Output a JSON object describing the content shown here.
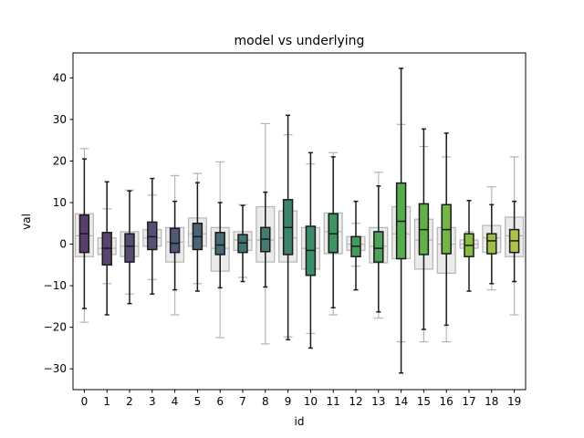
{
  "chart_data": {
    "type": "box",
    "title": "model vs underlying",
    "xlabel": "id",
    "ylabel": "val",
    "ylim": [
      -35,
      46
    ],
    "yticks": [
      -30,
      -20,
      -10,
      0,
      10,
      20,
      30,
      40
    ],
    "categories": [
      "0",
      "1",
      "2",
      "3",
      "4",
      "5",
      "6",
      "7",
      "8",
      "9",
      "10",
      "11",
      "12",
      "13",
      "14",
      "15",
      "16",
      "17",
      "18",
      "19"
    ],
    "series": [
      {
        "style": "colored",
        "boxes": [
          {
            "whislo": -15.5,
            "q1": -2.0,
            "med": 2.5,
            "q3": 7.0,
            "whishi": 20.5
          },
          {
            "whislo": -17.0,
            "q1": -5.0,
            "med": -1.0,
            "q3": 2.8,
            "whishi": 15.0
          },
          {
            "whislo": -14.3,
            "q1": -4.3,
            "med": -0.5,
            "q3": 2.5,
            "whishi": 12.8
          },
          {
            "whislo": -12.0,
            "q1": -1.3,
            "med": 1.8,
            "q3": 5.3,
            "whishi": 15.8
          },
          {
            "whislo": -11.0,
            "q1": -2.0,
            "med": 0.2,
            "q3": 3.8,
            "whishi": 10.3
          },
          {
            "whislo": -11.3,
            "q1": -1.3,
            "med": 1.8,
            "q3": 5.0,
            "whishi": 14.8
          },
          {
            "whislo": -10.5,
            "q1": -2.5,
            "med": -0.2,
            "q3": 2.8,
            "whishi": 10.0
          },
          {
            "whislo": -9.0,
            "q1": -2.0,
            "med": 0.3,
            "q3": 2.3,
            "whishi": 9.3
          },
          {
            "whislo": -10.3,
            "q1": -1.8,
            "med": 1.2,
            "q3": 4.0,
            "whishi": 12.5
          },
          {
            "whislo": -23.0,
            "q1": -2.5,
            "med": 4.0,
            "q3": 10.7,
            "whishi": 31.0
          },
          {
            "whislo": -25.0,
            "q1": -7.5,
            "med": -1.5,
            "q3": 4.3,
            "whishi": 22.0
          },
          {
            "whislo": -15.3,
            "q1": -2.0,
            "med": 2.5,
            "q3": 7.3,
            "whishi": 21.0
          },
          {
            "whislo": -11.0,
            "q1": -3.0,
            "med": -0.5,
            "q3": 1.8,
            "whishi": 10.3
          },
          {
            "whislo": -16.3,
            "q1": -4.3,
            "med": -1.0,
            "q3": 3.0,
            "whishi": 14.0
          },
          {
            "whislo": -31.0,
            "q1": -3.5,
            "med": 5.5,
            "q3": 14.7,
            "whishi": 42.3
          },
          {
            "whislo": -20.5,
            "q1": -2.5,
            "med": 3.5,
            "q3": 9.7,
            "whishi": 27.7
          },
          {
            "whislo": -19.5,
            "q1": -2.3,
            "med": 3.5,
            "q3": 9.5,
            "whishi": 26.7
          },
          {
            "whislo": -11.3,
            "q1": -3.0,
            "med": -0.3,
            "q3": 2.5,
            "whishi": 10.5
          },
          {
            "whislo": -9.5,
            "q1": -2.3,
            "med": 0.8,
            "q3": 2.5,
            "whishi": 9.5
          },
          {
            "whislo": -9.0,
            "q1": -2.0,
            "med": 0.8,
            "q3": 3.5,
            "whishi": 10.3
          }
        ]
      },
      {
        "style": "gray",
        "boxes": [
          {
            "whislo": -18.8,
            "q1": -3.0,
            "med": 2.0,
            "q3": 7.3,
            "whishi": 23.0
          },
          {
            "whislo": -9.5,
            "q1": -2.5,
            "med": -1.0,
            "q3": 1.5,
            "whishi": 8.5
          },
          {
            "whislo": -12.0,
            "q1": -3.0,
            "med": -0.5,
            "q3": 3.0,
            "whishi": 13.0
          },
          {
            "whislo": -8.5,
            "q1": -0.5,
            "med": 1.5,
            "q3": 3.5,
            "whishi": 11.8
          },
          {
            "whislo": -17.0,
            "q1": -4.3,
            "med": 0.5,
            "q3": 4.0,
            "whishi": 16.5
          },
          {
            "whislo": -9.5,
            "q1": -0.5,
            "med": 2.5,
            "q3": 6.3,
            "whishi": 17.0
          },
          {
            "whislo": -22.5,
            "q1": -6.5,
            "med": -1.0,
            "q3": 4.0,
            "whishi": 19.8
          },
          {
            "whislo": -8.0,
            "q1": -1.5,
            "med": 1.0,
            "q3": 3.0,
            "whishi": 9.5
          },
          {
            "whislo": -24.0,
            "q1": -4.3,
            "med": 1.0,
            "q3": 9.0,
            "whishi": 29.0
          },
          {
            "whislo": -22.3,
            "q1": -4.3,
            "med": 1.5,
            "q3": 8.0,
            "whishi": 26.3
          },
          {
            "whislo": -21.5,
            "q1": -6.0,
            "med": -1.0,
            "q3": 4.0,
            "whishi": 19.3
          },
          {
            "whislo": -17.0,
            "q1": -2.3,
            "med": 3.0,
            "q3": 7.5,
            "whishi": 22.0
          },
          {
            "whislo": -5.3,
            "q1": -1.5,
            "med": 0.0,
            "q3": 1.8,
            "whishi": 5.0
          },
          {
            "whislo": -17.8,
            "q1": -4.5,
            "med": -0.5,
            "q3": 4.0,
            "whishi": 17.3
          },
          {
            "whislo": -23.5,
            "q1": -3.5,
            "med": 2.5,
            "q3": 9.0,
            "whishi": 28.8
          },
          {
            "whislo": -23.5,
            "q1": -6.0,
            "med": 1.0,
            "q3": 6.0,
            "whishi": 23.5
          },
          {
            "whislo": -23.5,
            "q1": -7.0,
            "med": 0.0,
            "q3": 4.0,
            "whishi": 21.0
          },
          {
            "whislo": -2.5,
            "q1": -1.0,
            "med": 0.0,
            "q3": 1.0,
            "whishi": 3.0
          },
          {
            "whislo": -11.0,
            "q1": -2.0,
            "med": 1.5,
            "q3": 4.5,
            "whishi": 13.8
          },
          {
            "whislo": -17.0,
            "q1": -3.0,
            "med": 2.0,
            "q3": 6.5,
            "whishi": 21.0
          }
        ]
      }
    ],
    "colors": [
      "#5a3f6e",
      "#594371",
      "#574a73",
      "#535274",
      "#4f5a74",
      "#4b6374",
      "#486b73",
      "#457372",
      "#417c70",
      "#3d846e",
      "#3b8c6a",
      "#3d9465",
      "#439c5e",
      "#4ca357",
      "#56aa4f",
      "#63b048",
      "#74b644",
      "#88bb42",
      "#9cbf44",
      "#b0c24a"
    ],
    "gray_fill": "#e6e6e6",
    "gray_edge": "#b5b5b5",
    "dark_edge": "#1a1a1a"
  }
}
